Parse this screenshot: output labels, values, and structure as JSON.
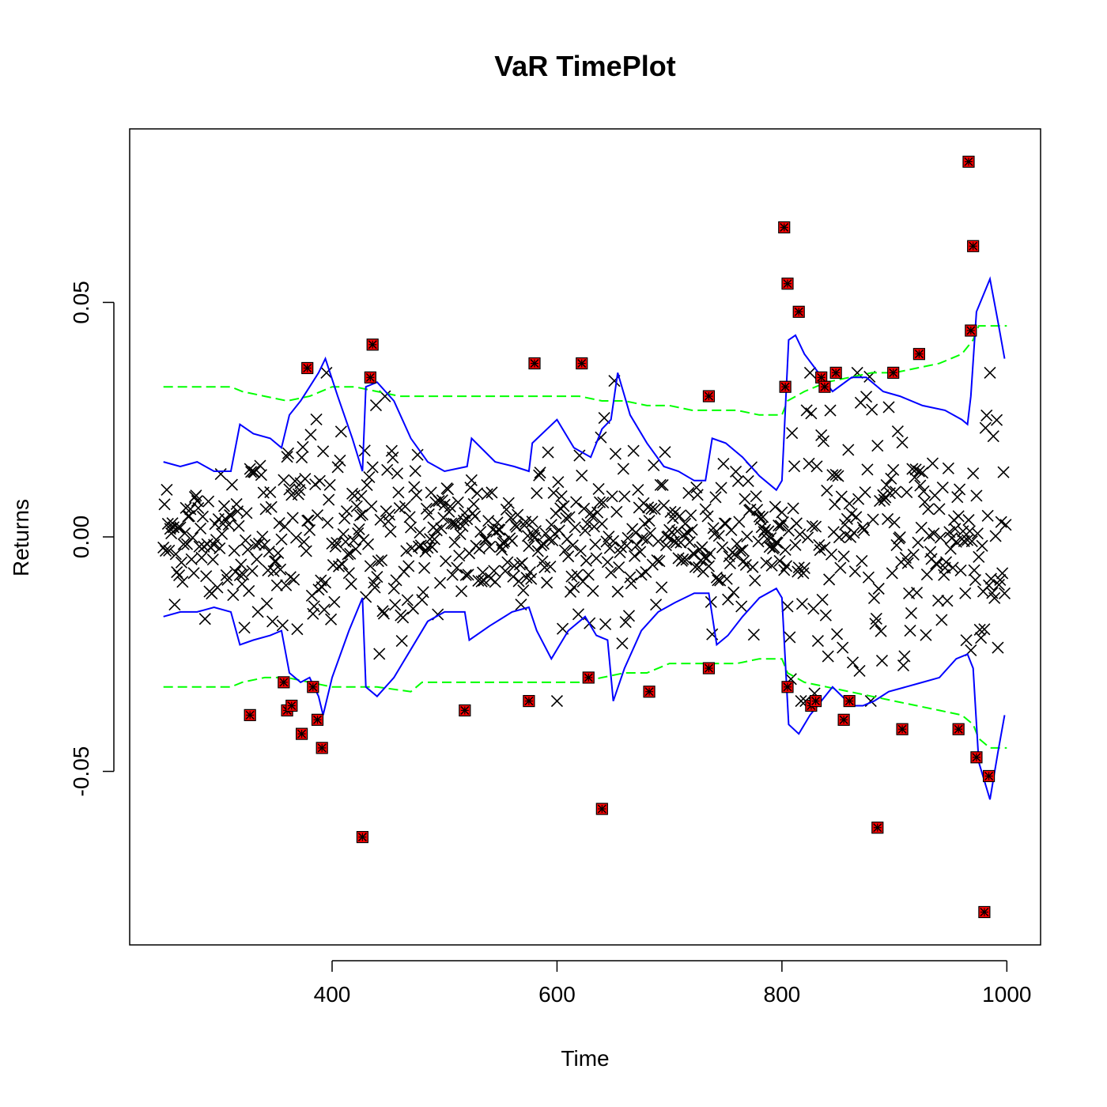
{
  "chart_data": {
    "type": "scatter",
    "title": "VaR TimePlot",
    "xlabel": "Time",
    "ylabel": "Returns",
    "xlim": [
      220,
      1030
    ],
    "ylim": [
      0.087,
      -0.087
    ],
    "y_axis_reversed": true,
    "x_ticks": [
      400,
      600,
      800,
      1000
    ],
    "x_tick_labels": [
      "400",
      "600",
      "800",
      "1000"
    ],
    "y_ticks": [
      -0.05,
      0.0,
      0.05
    ],
    "y_tick_labels": [
      "-0.05",
      "0.00",
      "0.05"
    ],
    "grid": false,
    "legend": "none",
    "colors": {
      "returns": "#000000",
      "exceedance_fill": "#ff0000",
      "var_ewma": "#0000ff",
      "var_historical": "#00ff00"
    },
    "series": [
      {
        "kind": "points",
        "marker": "x",
        "description_of_values": "returns, 750 observations from t=250 to t=999",
        "generator": {
          "t_start": 250,
          "t_end": 999,
          "seed": 12345
        }
      },
      {
        "kind": "line",
        "style": "solid",
        "upper": [
          [
            250,
            -0.017
          ],
          [
            265,
            -0.016
          ],
          [
            280,
            -0.016
          ],
          [
            295,
            -0.015
          ],
          [
            310,
            -0.016
          ],
          [
            318,
            -0.023
          ],
          [
            330,
            -0.022
          ],
          [
            345,
            -0.021
          ],
          [
            355,
            -0.02
          ],
          [
            362,
            -0.029
          ],
          [
            372,
            -0.031
          ],
          [
            380,
            -0.03
          ],
          [
            388,
            -0.034
          ],
          [
            392,
            -0.038
          ],
          [
            400,
            -0.03
          ],
          [
            415,
            -0.02
          ],
          [
            427,
            -0.013
          ],
          [
            430,
            -0.032
          ],
          [
            440,
            -0.034
          ],
          [
            455,
            -0.03
          ],
          [
            470,
            -0.024
          ],
          [
            485,
            -0.018
          ],
          [
            500,
            -0.016
          ],
          [
            518,
            -0.016
          ],
          [
            522,
            -0.022
          ],
          [
            540,
            -0.019
          ],
          [
            560,
            -0.016
          ],
          [
            575,
            -0.015
          ],
          [
            582,
            -0.02
          ],
          [
            595,
            -0.026
          ],
          [
            610,
            -0.02
          ],
          [
            625,
            -0.017
          ],
          [
            635,
            -0.021
          ],
          [
            645,
            -0.022
          ],
          [
            650,
            -0.035
          ],
          [
            660,
            -0.028
          ],
          [
            675,
            -0.02
          ],
          [
            690,
            -0.016
          ],
          [
            705,
            -0.014
          ],
          [
            722,
            -0.012
          ],
          [
            735,
            -0.012
          ],
          [
            742,
            -0.023
          ],
          [
            752,
            -0.021
          ],
          [
            765,
            -0.017
          ],
          [
            780,
            -0.013
          ],
          [
            795,
            -0.011
          ],
          [
            800,
            -0.013
          ],
          [
            806,
            -0.04
          ],
          [
            815,
            -0.042
          ],
          [
            825,
            -0.038
          ],
          [
            845,
            -0.032
          ],
          [
            862,
            -0.036
          ],
          [
            872,
            -0.036
          ],
          [
            882,
            -0.035
          ],
          [
            895,
            -0.033
          ],
          [
            910,
            -0.032
          ],
          [
            925,
            -0.031
          ],
          [
            940,
            -0.03
          ],
          [
            955,
            -0.026
          ],
          [
            965,
            -0.025
          ],
          [
            970,
            -0.028
          ],
          [
            975,
            -0.048
          ],
          [
            985,
            -0.056
          ],
          [
            992,
            -0.046
          ],
          [
            998,
            -0.038
          ]
        ],
        "lower": [
          [
            250,
            0.016
          ],
          [
            265,
            0.015
          ],
          [
            280,
            0.016
          ],
          [
            295,
            0.014
          ],
          [
            310,
            0.014
          ],
          [
            318,
            0.024
          ],
          [
            330,
            0.022
          ],
          [
            345,
            0.021
          ],
          [
            355,
            0.019
          ],
          [
            362,
            0.026
          ],
          [
            372,
            0.029
          ],
          [
            380,
            0.032
          ],
          [
            388,
            0.035
          ],
          [
            394,
            0.038
          ],
          [
            405,
            0.03
          ],
          [
            418,
            0.021
          ],
          [
            427,
            0.014
          ],
          [
            430,
            0.032
          ],
          [
            440,
            0.033
          ],
          [
            455,
            0.029
          ],
          [
            470,
            0.021
          ],
          [
            485,
            0.016
          ],
          [
            500,
            0.014
          ],
          [
            520,
            0.015
          ],
          [
            524,
            0.021
          ],
          [
            545,
            0.016
          ],
          [
            562,
            0.015
          ],
          [
            575,
            0.014
          ],
          [
            578,
            0.02
          ],
          [
            600,
            0.025
          ],
          [
            615,
            0.019
          ],
          [
            630,
            0.017
          ],
          [
            640,
            0.023
          ],
          [
            648,
            0.025
          ],
          [
            654,
            0.035
          ],
          [
            665,
            0.026
          ],
          [
            680,
            0.02
          ],
          [
            695,
            0.015
          ],
          [
            708,
            0.014
          ],
          [
            722,
            0.012
          ],
          [
            732,
            0.012
          ],
          [
            738,
            0.021
          ],
          [
            750,
            0.02
          ],
          [
            765,
            0.017
          ],
          [
            780,
            0.013
          ],
          [
            795,
            0.01
          ],
          [
            800,
            0.012
          ],
          [
            806,
            0.042
          ],
          [
            812,
            0.043
          ],
          [
            820,
            0.039
          ],
          [
            845,
            0.031
          ],
          [
            862,
            0.034
          ],
          [
            875,
            0.034
          ],
          [
            890,
            0.031
          ],
          [
            905,
            0.03
          ],
          [
            925,
            0.028
          ],
          [
            945,
            0.027
          ],
          [
            960,
            0.025
          ],
          [
            965,
            0.024
          ],
          [
            968,
            0.03
          ],
          [
            973,
            0.048
          ],
          [
            985,
            0.055
          ],
          [
            992,
            0.046
          ],
          [
            998,
            0.038
          ]
        ]
      },
      {
        "kind": "line",
        "style": "dashed",
        "upper": [
          [
            250,
            -0.032
          ],
          [
            270,
            -0.032
          ],
          [
            290,
            -0.032
          ],
          [
            310,
            -0.032
          ],
          [
            320,
            -0.031
          ],
          [
            340,
            -0.03
          ],
          [
            360,
            -0.03
          ],
          [
            380,
            -0.031
          ],
          [
            400,
            -0.032
          ],
          [
            420,
            -0.032
          ],
          [
            440,
            -0.032
          ],
          [
            470,
            -0.033
          ],
          [
            480,
            -0.031
          ],
          [
            500,
            -0.031
          ],
          [
            520,
            -0.031
          ],
          [
            540,
            -0.031
          ],
          [
            580,
            -0.031
          ],
          [
            620,
            -0.031
          ],
          [
            640,
            -0.03
          ],
          [
            660,
            -0.029
          ],
          [
            680,
            -0.029
          ],
          [
            690,
            -0.028
          ],
          [
            700,
            -0.027
          ],
          [
            720,
            -0.027
          ],
          [
            740,
            -0.027
          ],
          [
            760,
            -0.027
          ],
          [
            780,
            -0.026
          ],
          [
            800,
            -0.026
          ],
          [
            805,
            -0.029
          ],
          [
            820,
            -0.031
          ],
          [
            840,
            -0.032
          ],
          [
            860,
            -0.033
          ],
          [
            880,
            -0.034
          ],
          [
            900,
            -0.035
          ],
          [
            920,
            -0.036
          ],
          [
            940,
            -0.037
          ],
          [
            960,
            -0.038
          ],
          [
            970,
            -0.04
          ],
          [
            975,
            -0.043
          ],
          [
            985,
            -0.045
          ],
          [
            1000,
            -0.045
          ]
        ],
        "lower": [
          [
            250,
            0.032
          ],
          [
            270,
            0.032
          ],
          [
            290,
            0.032
          ],
          [
            310,
            0.032
          ],
          [
            320,
            0.031
          ],
          [
            340,
            0.03
          ],
          [
            360,
            0.029
          ],
          [
            380,
            0.03
          ],
          [
            400,
            0.032
          ],
          [
            420,
            0.032
          ],
          [
            440,
            0.031
          ],
          [
            460,
            0.03
          ],
          [
            480,
            0.03
          ],
          [
            500,
            0.03
          ],
          [
            520,
            0.03
          ],
          [
            540,
            0.03
          ],
          [
            580,
            0.03
          ],
          [
            620,
            0.03
          ],
          [
            640,
            0.029
          ],
          [
            660,
            0.029
          ],
          [
            680,
            0.028
          ],
          [
            700,
            0.028
          ],
          [
            720,
            0.027
          ],
          [
            740,
            0.027
          ],
          [
            760,
            0.027
          ],
          [
            780,
            0.026
          ],
          [
            800,
            0.026
          ],
          [
            805,
            0.029
          ],
          [
            820,
            0.031
          ],
          [
            840,
            0.033
          ],
          [
            860,
            0.034
          ],
          [
            880,
            0.035
          ],
          [
            900,
            0.035
          ],
          [
            920,
            0.036
          ],
          [
            940,
            0.037
          ],
          [
            960,
            0.039
          ],
          [
            970,
            0.042
          ],
          [
            975,
            0.045
          ],
          [
            985,
            0.045
          ],
          [
            1000,
            0.045
          ]
        ]
      },
      {
        "kind": "points",
        "marker": "boxed-star",
        "points": [
          [
            327,
            -0.038
          ],
          [
            357,
            -0.031
          ],
          [
            360,
            -0.037
          ],
          [
            364,
            -0.036
          ],
          [
            373,
            -0.042
          ],
          [
            383,
            -0.032
          ],
          [
            387,
            -0.039
          ],
          [
            391,
            -0.045
          ],
          [
            427,
            -0.064
          ],
          [
            518,
            -0.037
          ],
          [
            575,
            -0.035
          ],
          [
            628,
            -0.03
          ],
          [
            640,
            -0.058
          ],
          [
            682,
            -0.033
          ],
          [
            735,
            -0.028
          ],
          [
            805,
            -0.032
          ],
          [
            826,
            -0.036
          ],
          [
            830,
            -0.035
          ],
          [
            855,
            -0.039
          ],
          [
            860,
            -0.035
          ],
          [
            885,
            -0.062
          ],
          [
            907,
            -0.041
          ],
          [
            957,
            -0.041
          ],
          [
            973,
            -0.047
          ],
          [
            980,
            -0.08
          ],
          [
            984,
            -0.051
          ],
          [
            378,
            0.036
          ],
          [
            434,
            0.034
          ],
          [
            436,
            0.041
          ],
          [
            580,
            0.037
          ],
          [
            622,
            0.037
          ],
          [
            735,
            0.03
          ],
          [
            803,
            0.032
          ],
          [
            802,
            0.066
          ],
          [
            805,
            0.054
          ],
          [
            815,
            0.048
          ],
          [
            835,
            0.034
          ],
          [
            838,
            0.032
          ],
          [
            848,
            0.035
          ],
          [
            899,
            0.035
          ],
          [
            922,
            0.039
          ],
          [
            966,
            0.08
          ],
          [
            968,
            0.044
          ],
          [
            970,
            0.062
          ]
        ]
      }
    ]
  }
}
